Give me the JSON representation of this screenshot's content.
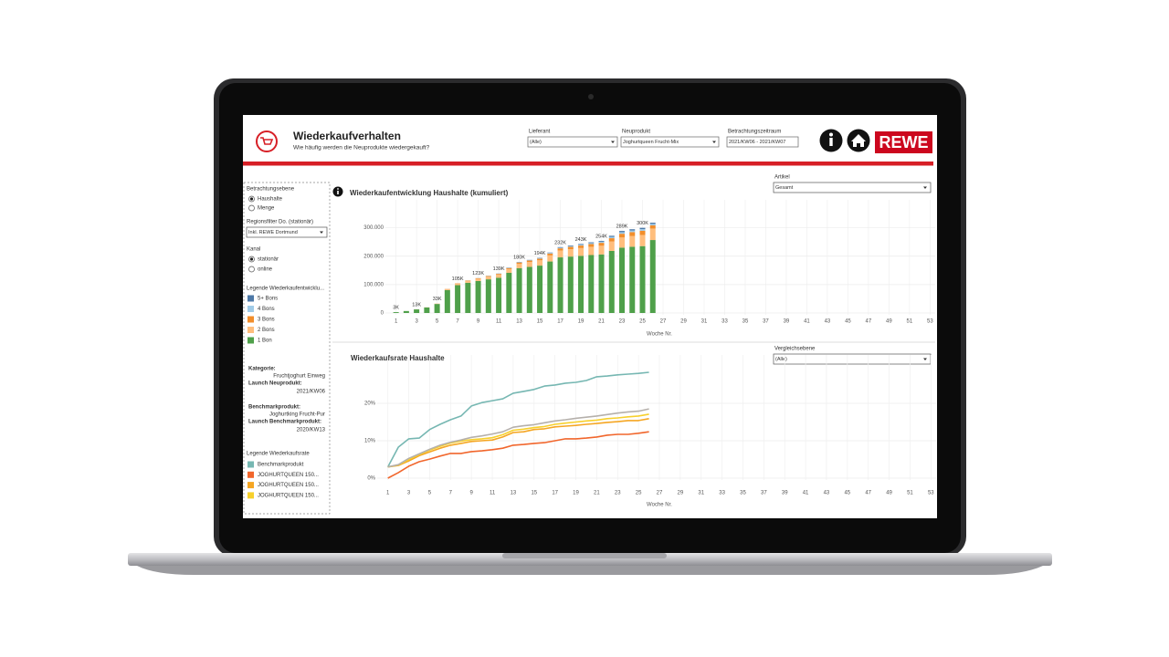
{
  "header": {
    "title": "Wiederkaufverhalten",
    "subtitle": "Wie häufig werden die Neuprodukte wiedergekauft?",
    "logo": "REWE"
  },
  "filters": [
    {
      "label": "Lieferant",
      "value": "(Alle)"
    },
    {
      "label": "Neuprodukt",
      "value": "Joghurtqueen Frucht-Mix"
    },
    {
      "label": "Betrachtungszeitraum",
      "value": "2021/KW06 - 2021/KW07"
    }
  ],
  "sidebar": {
    "ebene": {
      "label": "Betrachtungsebene",
      "options": [
        "Haushalte",
        "Menge"
      ],
      "selected": 0
    },
    "region": {
      "label": "Regionsfilter Do. (stationär)",
      "value": "Inkl. REWE Dortmund"
    },
    "kanal": {
      "label": "Kanal",
      "options": [
        "stationär",
        "online"
      ],
      "selected": 0
    },
    "legend1_title": "Legende Wiederkaufentwicklu...",
    "info": [
      {
        "label": "Kategorie:",
        "value": "Fruchtjoghurt Einweg"
      },
      {
        "label": "Launch Neuprodukt:",
        "value": "2021/KW06"
      },
      {
        "label": "Benchmarkprodukt:",
        "value": "Joghurtking Frucht-Pur"
      },
      {
        "label": "Launch Benchmarkprodukt:",
        "value": "2020/KW13"
      }
    ],
    "legend2_title": "Legende Wiederkaufsrate"
  },
  "chart_data": [
    {
      "type": "bar",
      "title": "Wiederkaufentwicklung Haushalte (kumuliert)",
      "control": {
        "label": "Artikel",
        "value": "Gesamt"
      },
      "x_label": "Woche Nr.",
      "x": [
        1,
        2,
        3,
        4,
        5,
        6,
        7,
        8,
        9,
        10,
        11,
        12,
        13,
        14,
        15,
        16,
        17,
        18,
        19,
        20,
        21,
        22,
        23,
        24,
        25,
        26
      ],
      "xlim": [
        0.5,
        53.5
      ],
      "xticks": [
        1,
        3,
        5,
        7,
        9,
        11,
        13,
        15,
        17,
        19,
        21,
        23,
        25,
        27,
        29,
        31,
        33,
        35,
        37,
        39,
        41,
        43,
        45,
        47,
        49,
        51,
        53
      ],
      "ylim": [
        0,
        360000
      ],
      "yticks": [
        0,
        {
          "value": 100000,
          "label": "100.000"
        },
        {
          "value": 200000,
          "label": "200.000"
        },
        {
          "value": 300000,
          "label": "300.000"
        }
      ],
      "grid": true,
      "series": [
        {
          "name": "1 Bon",
          "color": "#4fa04a",
          "values": [
            3000,
            6900,
            12700,
            19400,
            31800,
            80500,
            98000,
            106500,
            112700,
            118600,
            124300,
            141400,
            157800,
            162500,
            166900,
            181400,
            195900,
            198800,
            201300,
            204100,
            206300,
            218700,
            230200,
            233400,
            235600,
            257000
          ]
        },
        {
          "name": "2 Bons",
          "color": "#ffbe7d",
          "values": [
            0,
            100,
            300,
            500,
            1000,
            3800,
            5800,
            6900,
            8100,
            9300,
            10700,
            13300,
            15800,
            17300,
            18800,
            21500,
            24400,
            26000,
            27500,
            29100,
            30600,
            33200,
            35700,
            37500,
            39300,
            40500
          ]
        },
        {
          "name": "3 Bons",
          "color": "#f28e2b",
          "values": [
            0,
            0,
            0,
            100,
            200,
            600,
            1000,
            1300,
            1700,
            2200,
            2800,
            3600,
            4300,
            4900,
            5500,
            6500,
            7400,
            8100,
            8800,
            9600,
            10300,
            11500,
            13200,
            14200,
            14900,
            11300
          ]
        },
        {
          "name": "4 Bons",
          "color": "#a0cbe8",
          "values": [
            0,
            0,
            0,
            0,
            0,
            100,
            200,
            200,
            300,
            500,
            700,
            900,
            1200,
            1300,
            1600,
            2000,
            2400,
            2800,
            3000,
            3400,
            3800,
            4800,
            5600,
            5700,
            5800,
            5000
          ]
        },
        {
          "name": "5+ Bons",
          "color": "#4e79a7",
          "values": [
            0,
            0,
            0,
            0,
            0,
            0,
            0,
            100,
            200,
            400,
            500,
            800,
            900,
            1000,
            1200,
            1600,
            1900,
            2300,
            2400,
            2800,
            3000,
            3800,
            4300,
            4200,
            4400,
            4200
          ]
        }
      ],
      "total_labels": [
        "3K",
        null,
        "13K",
        null,
        "33K",
        null,
        "105K",
        null,
        "123K",
        null,
        "139K",
        null,
        "180K",
        null,
        "194K",
        null,
        "232K",
        null,
        "243K",
        null,
        "254K",
        null,
        "289K",
        null,
        "300K",
        null
      ]
    },
    {
      "type": "line",
      "title": "Wiederkaufsrate Haushalte",
      "control": {
        "label": "Vergleichsebene",
        "value": "(Alle)"
      },
      "x_label": "Woche Nr.",
      "x": [
        1,
        2,
        3,
        4,
        5,
        6,
        7,
        8,
        9,
        10,
        11,
        12,
        13,
        14,
        15,
        16,
        17,
        18,
        19,
        20,
        21,
        22,
        23,
        24,
        25,
        26
      ],
      "xlim": [
        0.5,
        53.5
      ],
      "xticks": [
        1,
        3,
        5,
        7,
        9,
        11,
        13,
        15,
        17,
        19,
        21,
        23,
        25,
        27,
        29,
        31,
        33,
        35,
        37,
        39,
        41,
        43,
        45,
        47,
        49,
        51,
        53
      ],
      "ylim": [
        0,
        30
      ],
      "yticks": [
        {
          "value": 0,
          "label": "0%"
        },
        {
          "value": 10,
          "label": "10%"
        },
        {
          "value": 20,
          "label": "20%"
        }
      ],
      "grid": true,
      "series": [
        {
          "name": "Benchmarkprodukt",
          "color": "#76b7b2",
          "values": [
            3,
            8.3,
            10.5,
            10.7,
            13,
            14.4,
            15.6,
            16.6,
            19.3,
            20.2,
            20.7,
            21.2,
            22.7,
            23.2,
            23.7,
            24.6,
            24.9,
            25.4,
            25.6,
            26.1,
            27.1,
            27.3,
            27.6,
            27.8,
            28,
            28.3
          ]
        },
        {
          "name": "JOGHURTQUEEN 150...",
          "color": "#f1662c",
          "values": [
            0,
            1.5,
            3.2,
            4.4,
            5.1,
            5.9,
            6.6,
            6.6,
            7.1,
            7.3,
            7.6,
            8,
            8.8,
            9,
            9.3,
            9.5,
            10,
            10.5,
            10.5,
            10.7,
            11,
            11.5,
            11.7,
            11.7,
            12,
            12.4
          ]
        },
        {
          "name": "JOGHURTQUEEN 150...",
          "color": "#f5a623",
          "values": [
            3,
            3.4,
            4.6,
            6,
            7,
            8,
            8.8,
            9.3,
            9.8,
            10,
            10.2,
            11,
            12.2,
            12.4,
            13,
            13.2,
            13.7,
            13.9,
            14.1,
            14.4,
            14.6,
            14.9,
            15.1,
            15.4,
            15.4,
            15.9
          ]
        },
        {
          "name": "JOGHURTQUEEN 150...",
          "color": "#f7d02c",
          "values": [
            3,
            3.5,
            5,
            6.3,
            7.5,
            8.5,
            9.4,
            9.9,
            10.3,
            10.5,
            10.8,
            11.6,
            12.8,
            13.1,
            13.5,
            13.8,
            14.4,
            14.7,
            15,
            15.3,
            15.5,
            15.9,
            16.1,
            16.4,
            16.6,
            17.1
          ]
        },
        {
          "color": "#b5b0ab",
          "values": [
            3,
            3.6,
            5.3,
            6.5,
            7.7,
            8.8,
            9.6,
            10.2,
            10.9,
            11.3,
            11.8,
            12.4,
            13.6,
            14,
            14.3,
            14.8,
            15.3,
            15.6,
            16,
            16.3,
            16.6,
            17,
            17.4,
            17.7,
            17.9,
            18.5
          ]
        }
      ]
    }
  ]
}
